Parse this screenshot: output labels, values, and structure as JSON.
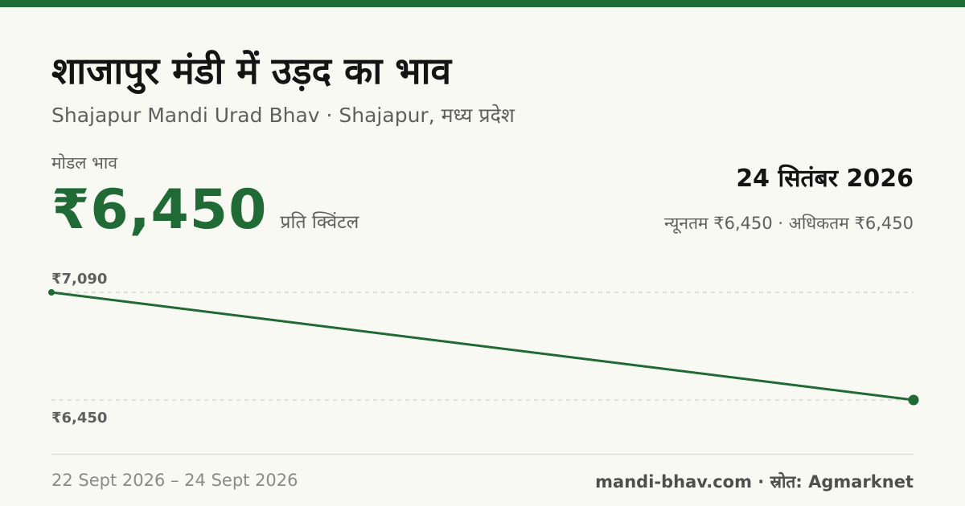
{
  "header": {
    "title": "शाजापुर मंडी में उड़द का भाव",
    "subtitle": "Shajapur Mandi Urad Bhav · Shajapur, मध्य प्रदेश"
  },
  "price": {
    "label": "मोडल भाव",
    "value": "₹6,450",
    "unit": "प्रति क्विंटल",
    "date": "24 सितंबर 2026",
    "range": "न्यूनतम ₹6,450 · अधिकतम ₹6,450"
  },
  "chart_data": {
    "type": "line",
    "x": [
      "22 Sept 2026",
      "24 Sept 2026"
    ],
    "series": [
      {
        "values": [
          7090,
          6450
        ]
      }
    ],
    "ylim": [
      6450,
      7090
    ],
    "tick_labels": [
      "₹7,090",
      "₹6,450"
    ],
    "grid": true,
    "line_color": "#1f6a35"
  },
  "footer": {
    "date_range": "22 Sept 2026 – 24 Sept 2026",
    "source": "mandi-bhav.com · स्रोत: Agmarknet"
  },
  "colors": {
    "accent": "#1f6a35",
    "background": "#f9f9f4"
  }
}
